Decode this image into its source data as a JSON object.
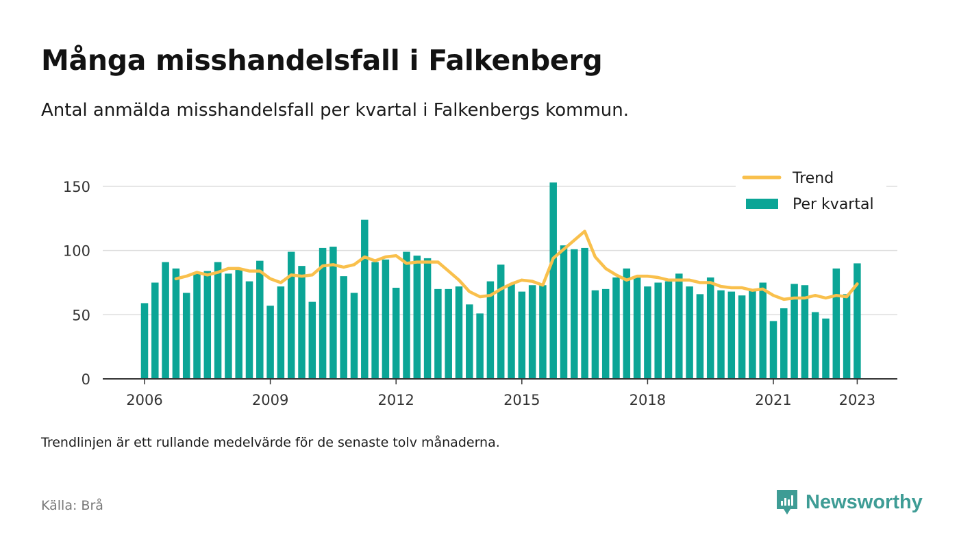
{
  "header": {
    "title": "Många misshandelsfall i Falkenberg",
    "subtitle": "Antal anmälda misshandelsfall per kvartal i Falkenbergs kommun."
  },
  "footer": {
    "note": "Trendlinjen är ett rullande medelvärde för de senaste tolv månaderna.",
    "source": "Källa: Brå",
    "brand": "Newsworthy"
  },
  "colors": {
    "bars": "#0ba596",
    "trend": "#f9c04c",
    "grid": "#dddddd",
    "axis": "#333333",
    "brand": "#3e9c95"
  },
  "chart_data": {
    "type": "bar",
    "x_start": "2006 Q1",
    "x_tick_labels": [
      "2006",
      "2009",
      "2012",
      "2015",
      "2018",
      "2021",
      "2023"
    ],
    "y_ticks": [
      0,
      50,
      100,
      150
    ],
    "ylim": [
      0,
      160
    ],
    "grid": true,
    "legend_position": "top-right",
    "legend": [
      "Trend",
      "Per kvartal"
    ],
    "series": [
      {
        "name": "Per kvartal",
        "kind": "bar",
        "values": [
          59,
          75,
          91,
          86,
          67,
          82,
          84,
          91,
          82,
          85,
          76,
          92,
          57,
          72,
          99,
          88,
          60,
          102,
          103,
          80,
          67,
          124,
          91,
          93,
          71,
          99,
          96,
          94,
          70,
          70,
          72,
          58,
          51,
          76,
          89,
          74,
          68,
          73,
          73,
          153,
          104,
          101,
          102,
          69,
          70,
          79,
          86,
          79,
          72,
          75,
          76,
          82,
          72,
          66,
          79,
          69,
          68,
          65,
          69,
          75,
          45,
          55,
          74,
          73,
          52,
          47,
          86,
          66,
          90
        ]
      },
      {
        "name": "Trend",
        "kind": "line",
        "values": [
          null,
          null,
          null,
          78,
          80,
          83,
          81,
          83,
          86,
          86,
          84,
          84,
          78,
          75,
          81,
          80,
          81,
          88,
          89,
          87,
          89,
          95,
          92,
          95,
          96,
          90,
          91,
          91,
          91,
          84,
          77,
          68,
          64,
          65,
          70,
          74,
          77,
          76,
          73,
          94,
          101,
          108,
          115,
          95,
          86,
          81,
          77,
          80,
          80,
          79,
          77,
          77,
          77,
          75,
          75,
          72,
          71,
          71,
          69,
          70,
          65,
          62,
          63,
          63,
          65,
          63,
          65,
          64,
          74
        ]
      }
    ]
  }
}
